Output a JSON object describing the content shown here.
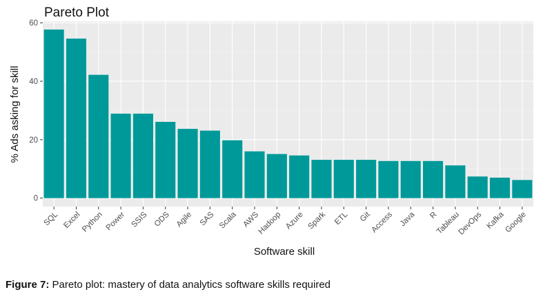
{
  "chart_data": {
    "type": "bar",
    "title": "Pareto Plot",
    "xlabel": "Software skill",
    "ylabel": "% Ads asking for skill",
    "categories": [
      "SQL",
      "Excel",
      "Python",
      "Power",
      "SSIS",
      "ODS",
      "Agile",
      "SAS",
      "Scala",
      "AWS",
      "Hadoop",
      "Azure",
      "Spark",
      "ETL",
      "Git",
      "Access",
      "Java",
      "R",
      "Tableau",
      "DevOps",
      "Kafka",
      "Google"
    ],
    "values": [
      57.7,
      54.6,
      42.2,
      28.9,
      28.9,
      26.1,
      23.7,
      23.1,
      19.8,
      16.0,
      15.1,
      14.6,
      13.1,
      13.1,
      13.1,
      12.7,
      12.7,
      12.7,
      11.2,
      7.4,
      7.0,
      6.2
    ],
    "ylim": [
      -2.9,
      60.5
    ],
    "yticks": [
      "0",
      "20",
      "40",
      "60"
    ],
    "grid": true,
    "colors": {
      "bar": "#009999",
      "panel": "#ebebeb",
      "grid_major": "#ffffff",
      "grid_minor": "#f5f5f5"
    }
  },
  "caption": {
    "label": "Figure 7:",
    "text": "Pareto plot: mastery of data analytics software skills required"
  }
}
